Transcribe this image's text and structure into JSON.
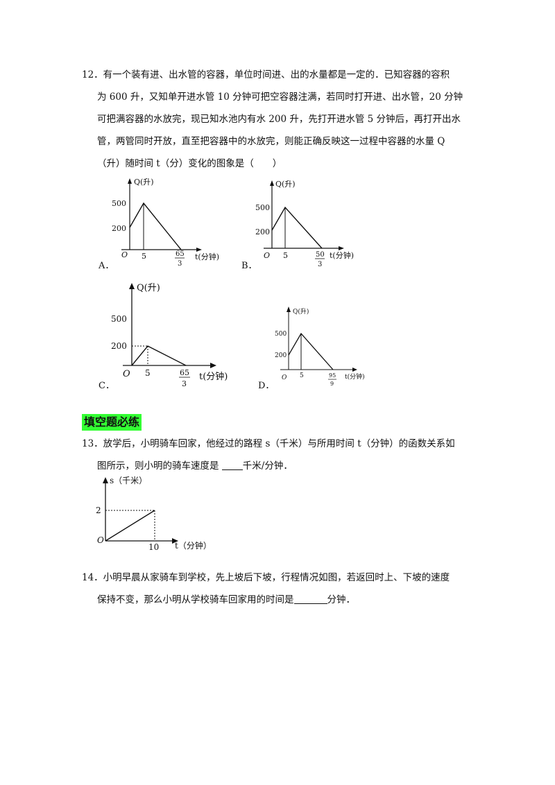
{
  "q12": {
    "lines": [
      "12．有一个装有进、出水管的容器，单位时间进、出的水量都是一定的．已知容器的容积",
      "为 600 升，又知单开进水管 10 分钟可把空容器注满，若同时打开进、出水管，20 分钟",
      "可把满容器的水放完，现已知水池内有水 200 升，先打开进水管 5 分钟后，再打开出水",
      "管，两管同时开放，直至把容器中的水放完，则能正确反映这一过程中容器的水量 Q",
      "（升）随时间 t（分）变化的图象是（　　）"
    ],
    "options": [
      {
        "letter": "A．",
        "y_axis": "Q(升)",
        "x_axis": "t(分钟)",
        "origin": "O",
        "y_ticks": [
          "500",
          "200"
        ],
        "x_tick": "5",
        "end_num": "65",
        "end_den": "3"
      },
      {
        "letter": "B．",
        "y_axis": "Q(升)",
        "x_axis": "t(分钟)",
        "origin": "O",
        "y_ticks": [
          "500",
          "200"
        ],
        "x_tick": "5",
        "end_num": "50",
        "end_den": "3"
      },
      {
        "letter": "C．",
        "y_axis": "Q(升)",
        "x_axis": "t(分钟)",
        "origin": "O",
        "y_ticks": [
          "500",
          "200"
        ],
        "x_tick": "5",
        "end_num": "65",
        "end_den": "3"
      },
      {
        "letter": "D．",
        "y_axis": "Q(升)",
        "x_axis": "t(分钟)",
        "origin": "O",
        "y_ticks": [
          "500",
          "200"
        ],
        "x_tick": "5",
        "end_num": "95",
        "end_den": "9"
      }
    ]
  },
  "section_title": "填空题必练",
  "q13": {
    "line1": "13．放学后，小明骑车回家，他经过的路程 s（千米）与所用时间 t（分钟）的函数关系如",
    "line2_before": "图所示，则小明的骑车速度是 ",
    "line2_after": "千米/分钟．",
    "graph": {
      "y_axis": "s（千米）",
      "x_axis": "t（分钟）",
      "origin": "O",
      "y_tick": "2",
      "x_tick": "10"
    }
  },
  "q14": {
    "line1": "14．小明早晨从家骑车到学校，先上坡后下坡，行程情况如图，若返回时上、下坡的速度",
    "line2_before": "保持不变，那么小明从学校骑车回家用的时间是",
    "line2_after": "分钟．"
  },
  "colors": {
    "section_highlight": "#33ff33",
    "ink": "#111111"
  }
}
